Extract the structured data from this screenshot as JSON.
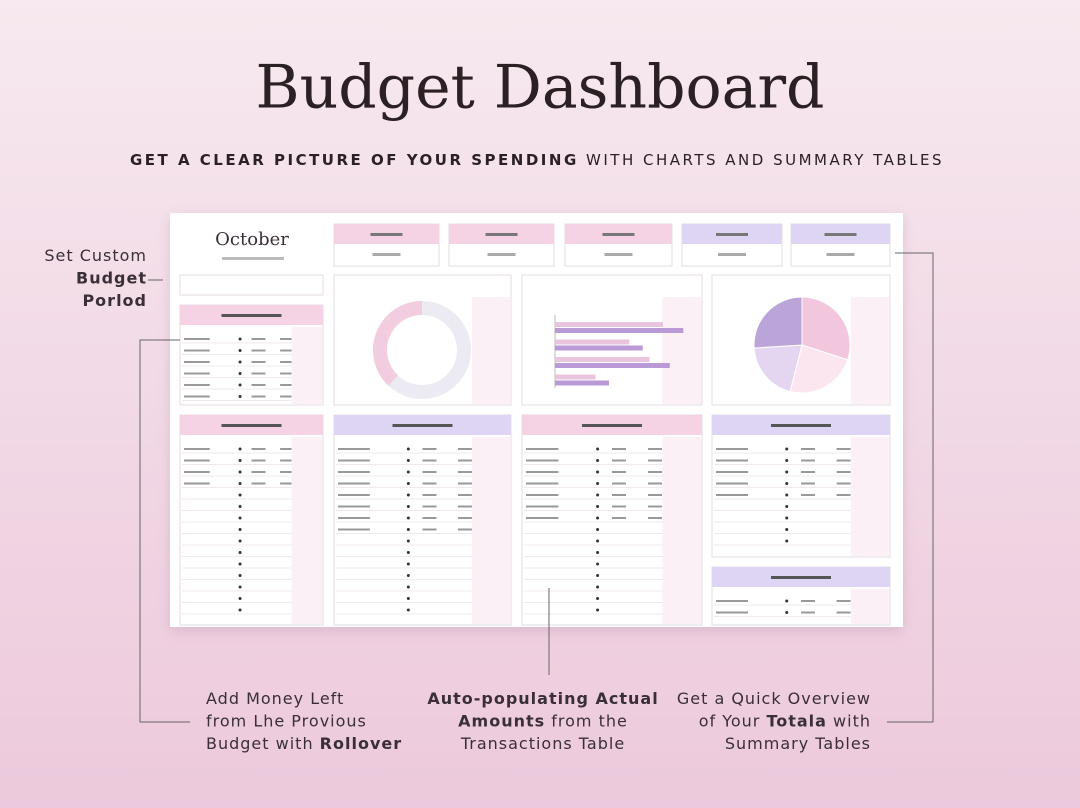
{
  "header": {
    "title": "Budget Dashboard",
    "subtitle_bold": "GET A CLEAR PICTURE OF YOUR SPENDING",
    "subtitle_rest": " WITH CHARTS AND SUMMARY TABLES"
  },
  "dashboard": {
    "month": "October",
    "donut": {
      "values": [
        38,
        62
      ],
      "colors": [
        "#f2cde0",
        "#ecebf4"
      ]
    },
    "bar": {
      "xlim": [
        0,
        100
      ],
      "series": [
        {
          "color": "#e9c4dc",
          "values": [
            80,
            55,
            70,
            30
          ]
        },
        {
          "color": "#b99ad6",
          "values": [
            95,
            65,
            85,
            40
          ]
        }
      ]
    },
    "pie": {
      "values": [
        30,
        24,
        20,
        26
      ],
      "colors": [
        "#f2c6dc",
        "#fbe6f0",
        "#e4d6f0",
        "#bba4d8"
      ]
    }
  },
  "annotations": [
    {
      "lines": [
        [
          {
            "text": "Set Custom",
            "bold": false
          }
        ],
        [
          {
            "text": "Budget",
            "bold": true
          }
        ],
        [
          {
            "text": "Porlod",
            "bold": true
          }
        ]
      ]
    },
    {
      "lines": [
        [
          {
            "text": "Add Money Left",
            "bold": false
          }
        ],
        [
          {
            "text": "from Lhe Provious",
            "bold": false
          }
        ],
        [
          {
            "text": "Budget with ",
            "bold": false
          },
          {
            "text": "Rollover",
            "bold": true
          }
        ]
      ]
    },
    {
      "lines": [
        [
          {
            "text": "Auto-populating Actual",
            "bold": true
          }
        ],
        [
          {
            "text": "Amounts",
            "bold": true
          },
          {
            "text": " from the",
            "bold": false
          }
        ],
        [
          {
            "text": "Transactions Table",
            "bold": false
          }
        ]
      ]
    },
    {
      "lines": [
        [
          {
            "text": "Get a Quick Overview",
            "bold": false
          }
        ],
        [
          {
            "text": "of Your ",
            "bold": false
          },
          {
            "text": "Totala",
            "bold": true
          },
          {
            "text": " with",
            "bold": false
          }
        ],
        [
          {
            "text": "Summary Tables",
            "bold": false
          }
        ]
      ]
    }
  ]
}
